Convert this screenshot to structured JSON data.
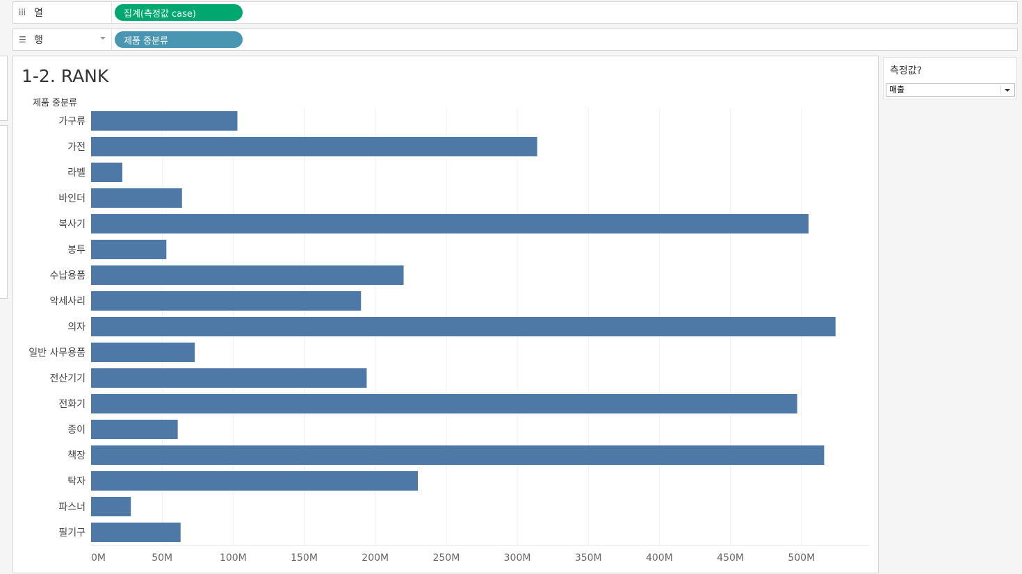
{
  "shelves": {
    "columns": {
      "icon": "iii",
      "label": "열",
      "pill_text": "집계(측정값 case)",
      "pill_color": "#00a870"
    },
    "rows": {
      "icon": "☰",
      "label": "행",
      "pill_text": "제품 중분류",
      "pill_color": "#4996b2"
    }
  },
  "sheet": {
    "title": "1-2. RANK"
  },
  "parameter": {
    "title": "측정값?",
    "selected": "매출"
  },
  "chart_data": {
    "type": "bar",
    "orientation": "horizontal",
    "row_header": "제품 중분류",
    "bar_color": "#4e79a7",
    "categories": [
      "가구류",
      "가전",
      "라벨",
      "바인더",
      "복사기",
      "봉투",
      "수납용품",
      "악세사리",
      "의자",
      "일반 사무용품",
      "전산기기",
      "전화기",
      "종이",
      "책장",
      "탁자",
      "파스너",
      "필기구"
    ],
    "values": [
      103,
      314,
      22,
      64,
      505,
      53,
      220,
      190,
      524,
      73,
      194,
      497,
      61,
      516,
      230,
      28,
      63
    ],
    "unit": "M",
    "xlim": [
      0,
      550
    ],
    "ticks": [
      0,
      50,
      100,
      150,
      200,
      250,
      300,
      350,
      400,
      450,
      500
    ],
    "tick_labels": [
      "0M",
      "50M",
      "100M",
      "150M",
      "200M",
      "250M",
      "300M",
      "350M",
      "400M",
      "450M",
      "500M"
    ],
    "grid": true
  }
}
